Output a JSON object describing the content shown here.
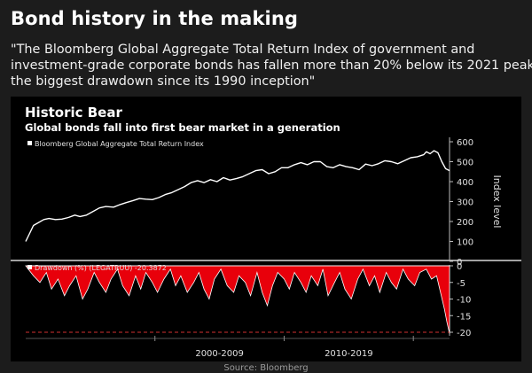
{
  "header": {
    "title": "Bond history in the making",
    "quote_lines": [
      "\"The Bloomberg Global Aggregate Total Return Index of government and",
      "investment-grade corporate bonds has fallen more than 20% below its 2021 peak,",
      "the biggest drawdown since its 1990 inception\""
    ]
  },
  "footer": {
    "source": "Source: Bloomberg"
  },
  "colors": {
    "page_background": "#1c1c1c",
    "chart_background": "#000000",
    "index_line": "#ffffff",
    "drawdown_fill": "#e8000b",
    "threshold_line": "#d03030",
    "axis_text": "#e0e0e0"
  },
  "chart_data": {
    "type": "line",
    "title": "Historic Bear",
    "subtitle": "Global bonds fall into first bear market in a generation",
    "x_tick_labels": [
      "2000-2009",
      "2010-2019"
    ],
    "x_range": [
      1990.0,
      2022.8
    ],
    "panels": [
      {
        "type": "line",
        "series": [
          {
            "name": "Bloomberg Global Aggregate Total Return Index",
            "x": [
              1990.0,
              1990.3,
              1990.6,
              1991.0,
              1991.4,
              1991.8,
              1992.3,
              1992.8,
              1993.3,
              1993.8,
              1994.2,
              1994.7,
              1995.2,
              1995.7,
              1996.2,
              1996.8,
              1997.3,
              1997.8,
              1998.3,
              1998.8,
              1999.3,
              1999.8,
              2000.3,
              2000.8,
              2001.3,
              2001.8,
              2002.3,
              2002.8,
              2003.3,
              2003.8,
              2004.3,
              2004.8,
              2005.3,
              2005.8,
              2006.3,
              2006.8,
              2007.3,
              2007.8,
              2008.3,
              2008.8,
              2009.3,
              2009.8,
              2010.3,
              2010.8,
              2011.3,
              2011.8,
              2012.3,
              2012.8,
              2013.3,
              2013.8,
              2014.3,
              2014.8,
              2015.3,
              2015.8,
              2016.3,
              2016.8,
              2017.3,
              2017.8,
              2018.3,
              2018.8,
              2019.3,
              2019.8,
              2020.3,
              2020.8,
              2021.0,
              2021.3,
              2021.6,
              2021.9,
              2022.2,
              2022.5,
              2022.8
            ],
            "values": [
              100,
              140,
              180,
              195,
              210,
              215,
              210,
              212,
              220,
              232,
              225,
              232,
              250,
              268,
              275,
              272,
              285,
              295,
              305,
              315,
              312,
              310,
              320,
              335,
              345,
              360,
              375,
              395,
              405,
              395,
              410,
              400,
              420,
              408,
              415,
              425,
              440,
              455,
              460,
              440,
              450,
              470,
              470,
              485,
              495,
              485,
              500,
              500,
              475,
              470,
              485,
              475,
              470,
              460,
              488,
              480,
              490,
              505,
              500,
              490,
              505,
              520,
              525,
              535,
              550,
              540,
              555,
              545,
              500,
              465,
              455
            ]
          }
        ],
        "ylabel": "Index level",
        "ylim": [
          0,
          620
        ],
        "yticks": [
          0,
          100,
          200,
          300,
          400,
          500,
          600
        ],
        "y_tick_labels": [
          "0",
          "100",
          "200",
          "300",
          "400",
          "500",
          "600"
        ],
        "legend_position": "top-left"
      },
      {
        "type": "area",
        "series": [
          {
            "name": "Drawdown (%) (LEGATRUU) -20.3872",
            "x": [
              1990.0,
              1990.6,
              1991.1,
              1991.6,
              1992.0,
              1992.5,
              1993.0,
              1993.4,
              1993.9,
              1994.4,
              1994.8,
              1995.3,
              1995.7,
              1996.2,
              1996.6,
              1997.1,
              1997.5,
              1998.0,
              1998.5,
              1998.9,
              1999.3,
              1999.8,
              2000.2,
              2000.7,
              2001.2,
              2001.6,
              2002.0,
              2002.5,
              2003.0,
              2003.4,
              2003.8,
              2004.2,
              2004.6,
              2005.1,
              2005.6,
              2006.1,
              2006.5,
              2007.0,
              2007.4,
              2007.9,
              2008.3,
              2008.7,
              2009.1,
              2009.5,
              2010.0,
              2010.4,
              2010.8,
              2011.3,
              2011.7,
              2012.1,
              2012.6,
              2013.0,
              2013.4,
              2013.9,
              2014.3,
              2014.7,
              2015.2,
              2015.7,
              2016.1,
              2016.6,
              2017.0,
              2017.4,
              2017.9,
              2018.3,
              2018.7,
              2019.2,
              2019.6,
              2020.1,
              2020.5,
              2021.0,
              2021.4,
              2021.8,
              2022.1,
              2022.4,
              2022.6,
              2022.8
            ],
            "values": [
              0,
              -3,
              -5,
              -2,
              -7,
              -4,
              -9,
              -6,
              -3,
              -10,
              -7,
              -2,
              -5,
              -8,
              -4,
              -1,
              -6,
              -9,
              -3,
              -7,
              -2,
              -5,
              -8,
              -4,
              -1,
              -6,
              -3,
              -8,
              -5,
              -2,
              -7,
              -10,
              -4,
              -1,
              -6,
              -8,
              -3,
              -5,
              -9,
              -2,
              -8,
              -12,
              -6,
              -2,
              -4,
              -7,
              -2,
              -5,
              -8,
              -3,
              -6,
              -1,
              -9,
              -5,
              -2,
              -7,
              -10,
              -4,
              -1,
              -6,
              -3,
              -8,
              -2,
              -5,
              -7,
              -1,
              -4,
              -6,
              -2,
              -1,
              -4,
              -3,
              -8,
              -13,
              -17,
              -20.4
            ]
          }
        ],
        "ylim": [
          -21,
          0
        ],
        "yticks": [
          0,
          -5,
          -10,
          -15,
          -20
        ],
        "y_tick_labels": [
          "0",
          "-5",
          "-10",
          "-15",
          "-20"
        ],
        "reference_line": -20,
        "legend_position": "top-left"
      }
    ]
  }
}
